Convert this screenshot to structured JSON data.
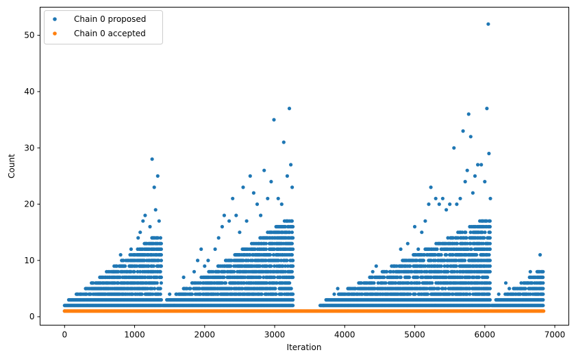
{
  "chart_data": {
    "type": "scatter",
    "xlabel": "Iteration",
    "ylabel": "Count",
    "xlim": [
      -350,
      7200
    ],
    "ylim": [
      -1.5,
      55
    ],
    "xticks": [
      0,
      1000,
      2000,
      3000,
      4000,
      5000,
      6000,
      7000
    ],
    "yticks": [
      0,
      10,
      20,
      30,
      40,
      50
    ],
    "grid": false,
    "legend_position": "top-left",
    "series": [
      {
        "name": "Chain 0 proposed",
        "color": "#1f77b4",
        "description_of_distribution": "one proposed count per iteration from 0 to 6843, values mostly 1-10 with bursts",
        "points": [
          [
            0,
            1
          ],
          [
            100,
            2
          ],
          [
            150,
            3
          ],
          [
            200,
            2
          ],
          [
            250,
            3
          ],
          [
            300,
            4
          ],
          [
            350,
            3
          ],
          [
            400,
            5
          ],
          [
            450,
            4
          ],
          [
            500,
            6
          ],
          [
            550,
            5
          ],
          [
            600,
            8
          ],
          [
            650,
            7
          ],
          [
            700,
            8
          ],
          [
            750,
            6
          ],
          [
            800,
            11
          ],
          [
            850,
            9
          ],
          [
            900,
            8
          ],
          [
            950,
            12
          ],
          [
            1000,
            10
          ],
          [
            1050,
            14
          ],
          [
            1080,
            15
          ],
          [
            1120,
            17
          ],
          [
            1150,
            18
          ],
          [
            1180,
            13
          ],
          [
            1220,
            16
          ],
          [
            1250,
            28
          ],
          [
            1280,
            23
          ],
          [
            1300,
            19
          ],
          [
            1330,
            25
          ],
          [
            1350,
            17
          ],
          [
            1370,
            14
          ],
          [
            1500,
            4
          ],
          [
            1600,
            4
          ],
          [
            1700,
            7
          ],
          [
            1800,
            5
          ],
          [
            1850,
            8
          ],
          [
            1900,
            10
          ],
          [
            1950,
            12
          ],
          [
            2000,
            9
          ],
          [
            2050,
            10
          ],
          [
            2100,
            8
          ],
          [
            2150,
            12
          ],
          [
            2200,
            14
          ],
          [
            2250,
            16
          ],
          [
            2280,
            18
          ],
          [
            2350,
            17
          ],
          [
            2400,
            21
          ],
          [
            2450,
            18
          ],
          [
            2500,
            15
          ],
          [
            2550,
            23
          ],
          [
            2600,
            17
          ],
          [
            2650,
            25
          ],
          [
            2700,
            22
          ],
          [
            2750,
            20
          ],
          [
            2800,
            18
          ],
          [
            2850,
            26
          ],
          [
            2900,
            21
          ],
          [
            2950,
            24
          ],
          [
            2990,
            35
          ],
          [
            3050,
            21
          ],
          [
            3100,
            20
          ],
          [
            3130,
            31
          ],
          [
            3180,
            25
          ],
          [
            3210,
            37
          ],
          [
            3230,
            27
          ],
          [
            3250,
            23
          ],
          [
            3700,
            2
          ],
          [
            3800,
            3
          ],
          [
            3850,
            4
          ],
          [
            3900,
            5
          ],
          [
            4000,
            3
          ],
          [
            4050,
            4
          ],
          [
            4100,
            5
          ],
          [
            4200,
            6
          ],
          [
            4300,
            5
          ],
          [
            4400,
            8
          ],
          [
            4450,
            9
          ],
          [
            4500,
            7
          ],
          [
            4600,
            8
          ],
          [
            4700,
            9
          ],
          [
            4800,
            12
          ],
          [
            4900,
            13
          ],
          [
            5000,
            16
          ],
          [
            5050,
            12
          ],
          [
            5100,
            15
          ],
          [
            5150,
            17
          ],
          [
            5200,
            20
          ],
          [
            5230,
            23
          ],
          [
            5300,
            21
          ],
          [
            5350,
            20
          ],
          [
            5400,
            21
          ],
          [
            5450,
            19
          ],
          [
            5500,
            20
          ],
          [
            5560,
            30
          ],
          [
            5600,
            20
          ],
          [
            5650,
            21
          ],
          [
            5690,
            33
          ],
          [
            5720,
            24
          ],
          [
            5750,
            26
          ],
          [
            5770,
            36
          ],
          [
            5800,
            32
          ],
          [
            5830,
            22
          ],
          [
            5860,
            25
          ],
          [
            5900,
            27
          ],
          [
            5950,
            27
          ],
          [
            6000,
            24
          ],
          [
            6030,
            37
          ],
          [
            6050,
            52
          ],
          [
            6060,
            29
          ],
          [
            6080,
            21
          ],
          [
            6200,
            4
          ],
          [
            6300,
            6
          ],
          [
            6350,
            5
          ],
          [
            6400,
            4
          ],
          [
            6500,
            5
          ],
          [
            6600,
            6
          ],
          [
            6650,
            8
          ],
          [
            6700,
            7
          ],
          [
            6750,
            7
          ],
          [
            6790,
            11
          ],
          [
            6830,
            7
          ]
        ]
      },
      {
        "name": "Chain 0 accepted",
        "color": "#ff7f0e",
        "description_of_distribution": "accepted count equals 1 at every iteration from 0 to 6843",
        "points": [
          [
            0,
            1
          ],
          [
            1000,
            1
          ],
          [
            2000,
            1
          ],
          [
            3000,
            1
          ],
          [
            4000,
            1
          ],
          [
            5000,
            1
          ],
          [
            6000,
            1
          ],
          [
            6843,
            1
          ]
        ]
      }
    ]
  }
}
